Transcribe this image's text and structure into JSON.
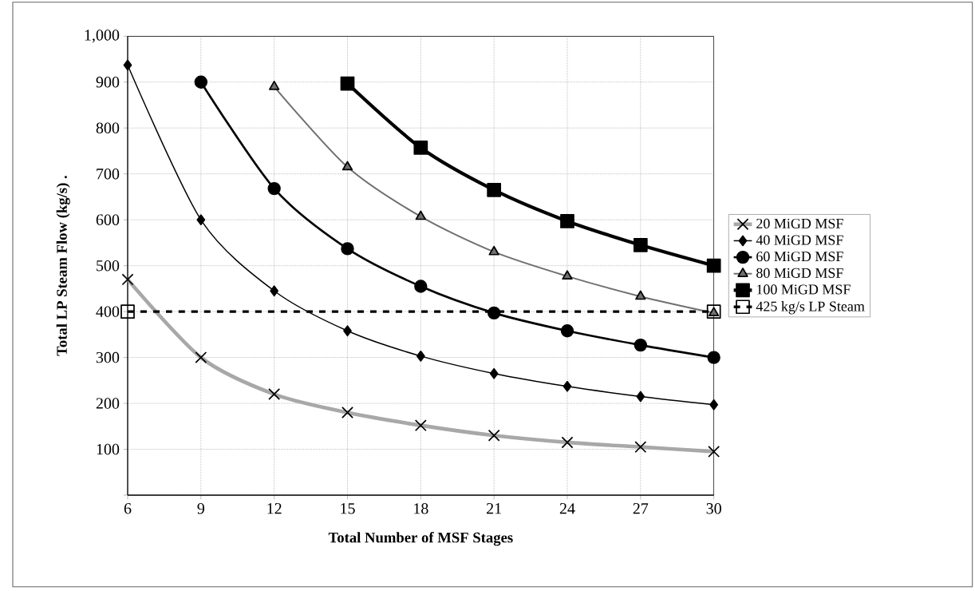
{
  "chart_data": {
    "type": "line",
    "xlabel": "Total Number of MSF Stages",
    "ylabel": "Total LP Steam Flow (kg/s) .",
    "x": [
      6,
      9,
      12,
      15,
      18,
      21,
      24,
      27,
      30
    ],
    "series": [
      {
        "name": "20 MiGD MSF",
        "color": "#a8a8a8",
        "marker": "cross",
        "values": [
          470,
          300,
          220,
          180,
          152,
          130,
          115,
          105,
          95
        ]
      },
      {
        "name": "40 MiGD MSF",
        "color": "#000000",
        "marker": "diamond",
        "values": [
          937,
          600,
          445,
          358,
          303,
          265,
          237,
          215,
          197
        ]
      },
      {
        "name": "60 MiGD MSF",
        "color": "#000000",
        "marker": "circle",
        "values": [
          null,
          900,
          668,
          537,
          455,
          397,
          358,
          327,
          300
        ]
      },
      {
        "name": "80 MiGD MSF",
        "color": "#707070",
        "marker": "triangle",
        "values": [
          null,
          null,
          890,
          715,
          607,
          530,
          477,
          433,
          397
        ]
      },
      {
        "name": "100 MiGD MSF",
        "color": "#000000",
        "marker": "square",
        "values": [
          null,
          null,
          null,
          897,
          757,
          665,
          597,
          545,
          500
        ]
      },
      {
        "name": "425 kg/s LP Steam",
        "color": "#000000",
        "marker": "square",
        "line_style": "dashed",
        "x": [
          6,
          30
        ],
        "values": [
          400,
          400
        ]
      }
    ],
    "xlim": [
      6,
      30
    ],
    "xticks": [
      6,
      9,
      12,
      15,
      18,
      21,
      24,
      27,
      30
    ],
    "ylim": [
      0,
      1000
    ],
    "yticks": [
      {
        "value": 0,
        "label": null
      },
      100,
      200,
      300,
      400,
      500,
      600,
      700,
      800,
      900,
      {
        "value": 1000,
        "label": "1,000"
      }
    ],
    "grid": true,
    "legend": "right"
  }
}
